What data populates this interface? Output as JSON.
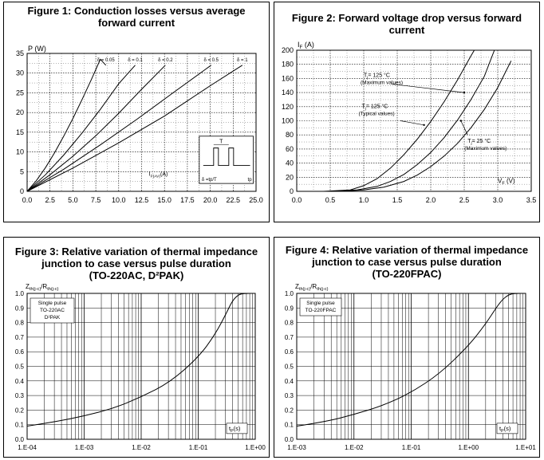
{
  "chart_data": [
    {
      "type": "line",
      "title": [
        "Figure 1: Conduction losses versus average",
        "forward current"
      ],
      "ylabel": "P (W)",
      "xlabel_main": "I",
      "xlabel_sub": "F(AV)",
      "xlabel_unit": "(A)",
      "xlim": [
        0,
        25
      ],
      "ylim": [
        0,
        35
      ],
      "x_ticks": [
        "0.0",
        "2.5",
        "5.0",
        "7.5",
        "10.0",
        "12.5",
        "15.0",
        "17.5",
        "20.0",
        "22.5",
        "25.0"
      ],
      "y_ticks": [
        "0",
        "5",
        "10",
        "15",
        "20",
        "25",
        "30",
        "35"
      ],
      "series": [
        {
          "name": "δ = 0.05",
          "x": [
            0,
            1,
            2,
            3,
            4,
            5,
            6,
            7,
            8,
            8.6
          ],
          "y": [
            0,
            2.7,
            6,
            9.8,
            14,
            18.5,
            23.3,
            28.3,
            33.5,
            32.0
          ]
        },
        {
          "name": "δ = 0.1",
          "x": [
            0,
            2,
            4,
            6,
            8,
            10,
            11.8
          ],
          "y": [
            0,
            4.2,
            9.2,
            14.8,
            20.8,
            27.3,
            32.0
          ]
        },
        {
          "name": "δ = 0.2",
          "x": [
            0,
            2.5,
            5,
            7.5,
            10,
            12.5,
            15.1
          ],
          "y": [
            0,
            4.2,
            8.9,
            14.1,
            19.8,
            25.9,
            32.0
          ]
        },
        {
          "name": "δ = 0.5",
          "x": [
            0,
            4,
            8,
            12,
            16,
            20.1
          ],
          "y": [
            0,
            5.6,
            11.8,
            18.3,
            25.1,
            32.0
          ]
        },
        {
          "name": "δ = 1",
          "x": [
            0,
            5,
            10,
            15,
            20,
            23.5
          ],
          "y": [
            0,
            5.9,
            12.3,
            19.1,
            26.8,
            32.0
          ]
        }
      ],
      "inset": {
        "tau_label": "T",
        "delta_label": "δ =tp/T",
        "tp_label": "tp"
      }
    },
    {
      "type": "line",
      "title": [
        "Figure 2: Forward voltage drop versus forward",
        "current"
      ],
      "ylabel_main": "I",
      "ylabel_sub": "F",
      "ylabel_unit": "(A)",
      "xlabel_main": "V",
      "xlabel_sub": "F",
      "xlabel_unit": "(V)",
      "xlim": [
        0,
        3.5
      ],
      "ylim": [
        0,
        200
      ],
      "x_ticks": [
        "0.0",
        "0.5",
        "1.0",
        "1.5",
        "2.0",
        "2.5",
        "3.0",
        "3.5"
      ],
      "y_ticks": [
        "0",
        "20",
        "40",
        "60",
        "80",
        "100",
        "120",
        "140",
        "160",
        "180",
        "200"
      ],
      "series": [
        {
          "name": "Tj=125 °C (Maximum values)",
          "x": [
            0.4,
            0.8,
            1.0,
            1.2,
            1.4,
            1.6,
            1.8,
            2.0,
            2.2,
            2.4,
            2.6,
            2.65
          ],
          "y": [
            0,
            2,
            8,
            18,
            33,
            52,
            74,
            99,
            127,
            158,
            192,
            200
          ]
        },
        {
          "name": "Tj=125 °C (Typical values)",
          "x": [
            0.5,
            0.9,
            1.2,
            1.4,
            1.6,
            1.8,
            2.0,
            2.2,
            2.4,
            2.6,
            2.8,
            2.95
          ],
          "y": [
            0,
            2,
            7,
            14,
            24,
            38,
            55,
            76,
            101,
            130,
            163,
            200
          ]
        },
        {
          "name": "Tj=25 °C (Maximum values)",
          "x": [
            0.6,
            1.0,
            1.3,
            1.6,
            1.8,
            2.0,
            2.2,
            2.4,
            2.6,
            2.8,
            3.0,
            3.2
          ],
          "y": [
            0,
            2,
            6,
            14,
            23,
            35,
            50,
            68,
            90,
            116,
            147,
            185
          ]
        }
      ],
      "annotations": [
        {
          "line1": "T",
          "line1_sub": "j",
          "line1_rest": "= 125 °C",
          "line2": "(Maximum values)"
        },
        {
          "line1": "T",
          "line1_sub": "j",
          "line1_rest": "= 125 °C",
          "line2": "(Typical values)"
        },
        {
          "line1": "T",
          "line1_sub": "j",
          "line1_rest": "= 25 °C",
          "line2": "(Maximum values)"
        }
      ]
    },
    {
      "type": "line",
      "title": [
        "Figure 3: Relative variation of thermal impedance",
        "junction to case versus pulse duration",
        "(TO-220AC, D²PAK)"
      ],
      "ylabel_main": "Z",
      "ylabel_sub": "th(j-c)",
      "ylabel_mid": "/R",
      "ylabel_sub2": "th(j-c)",
      "xlabel_main": "t",
      "xlabel_sub": "P",
      "xlabel_unit": "(s)",
      "x_scale": "log",
      "xlim_exp": [
        -4,
        0
      ],
      "ylim": [
        0,
        1
      ],
      "x_ticks": [
        "1.E-04",
        "1.E-03",
        "1.E-02",
        "1.E-01",
        "1.E+00"
      ],
      "y_ticks": [
        "0.0",
        "0.1",
        "0.2",
        "0.3",
        "0.4",
        "0.5",
        "0.6",
        "0.7",
        "0.8",
        "0.9",
        "1.0"
      ],
      "legend": [
        "Single pulse",
        "TO-220AC",
        "D²PAK"
      ],
      "series": [
        {
          "name": "Zth",
          "x_exp": [
            -4,
            -3.5,
            -3,
            -2.5,
            -2,
            -1.5,
            -1,
            -0.7,
            -0.5,
            -0.4,
            -0.3,
            -0.2,
            0
          ],
          "y": [
            0.09,
            0.12,
            0.16,
            0.21,
            0.29,
            0.39,
            0.56,
            0.72,
            0.87,
            0.95,
            0.99,
            1.0,
            1.0
          ]
        }
      ]
    },
    {
      "type": "line",
      "title": [
        "Figure 4: Relative variation of thermal impedance",
        "junction to case versus pulse duration",
        "(TO-220FPAC)"
      ],
      "ylabel_main": "Z",
      "ylabel_sub": "th(j-c)",
      "ylabel_mid": "/R",
      "ylabel_sub2": "th(j-c)",
      "xlabel_main": "t",
      "xlabel_sub": "P",
      "xlabel_unit": "(s)",
      "x_scale": "log",
      "xlim_exp": [
        -3,
        1
      ],
      "ylim": [
        0,
        1
      ],
      "x_ticks": [
        "1.E-03",
        "1.E-02",
        "1.E-01",
        "1.E+00",
        "1.E+01"
      ],
      "y_ticks": [
        "0.0",
        "0.1",
        "0.2",
        "0.3",
        "0.4",
        "0.5",
        "0.6",
        "0.7",
        "0.8",
        "0.9",
        "1.0"
      ],
      "legend": [
        "Single pulse",
        "TO-220FPAC"
      ],
      "series": [
        {
          "name": "Zth",
          "x_exp": [
            -3,
            -2.5,
            -2,
            -1.5,
            -1,
            -0.5,
            0,
            0.3,
            0.5,
            0.6,
            0.7,
            0.8,
            1
          ],
          "y": [
            0.09,
            0.12,
            0.17,
            0.23,
            0.32,
            0.45,
            0.64,
            0.79,
            0.91,
            0.96,
            0.99,
            1.0,
            1.0
          ]
        }
      ]
    }
  ]
}
